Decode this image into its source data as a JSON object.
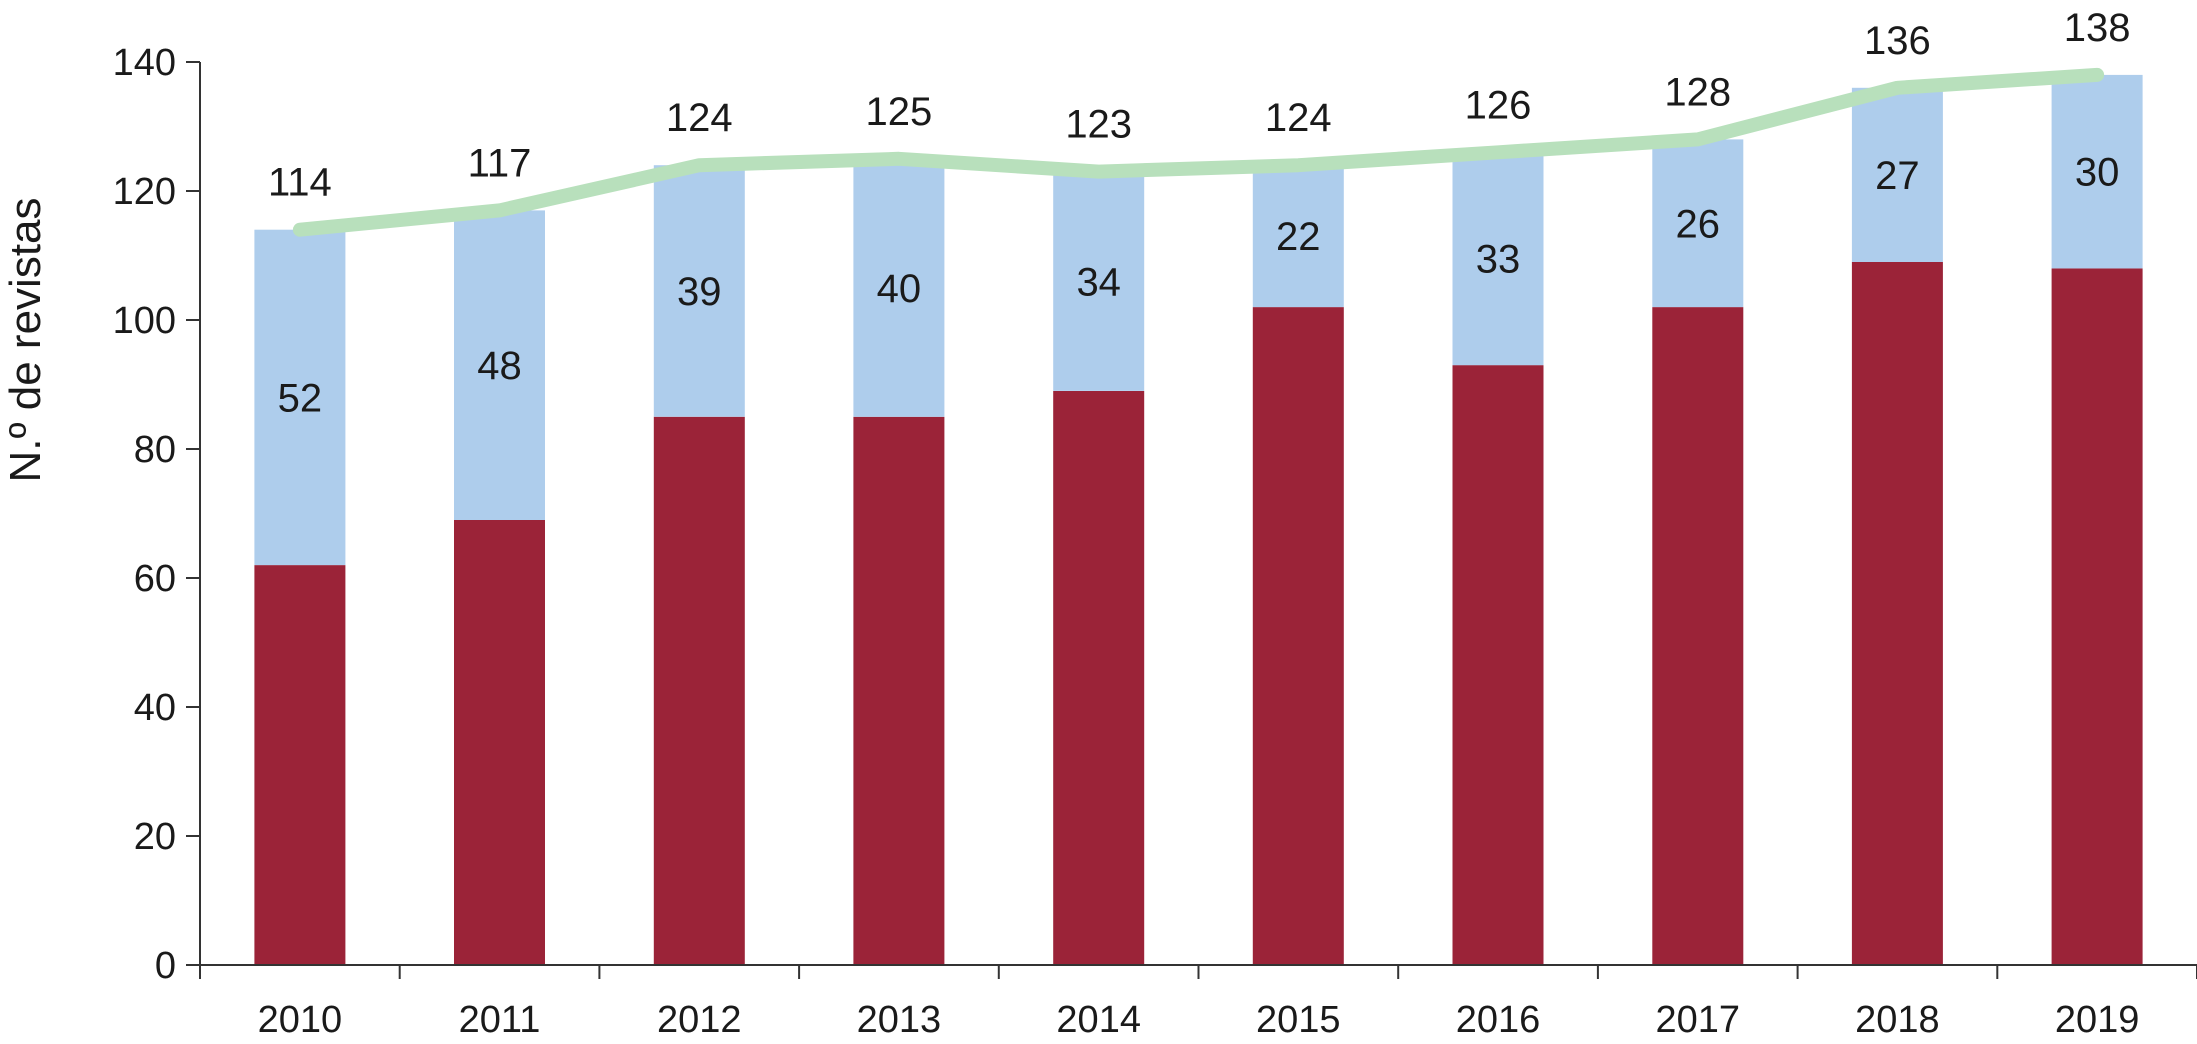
{
  "chart_data": {
    "type": "bar",
    "stacked": true,
    "title": "",
    "xlabel": "",
    "ylabel": "N.º de revistas",
    "ylim": [
      0,
      140
    ],
    "yticks": [
      0,
      20,
      40,
      60,
      80,
      100,
      120,
      140
    ],
    "grid": false,
    "categories": [
      "2010",
      "2011",
      "2012",
      "2013",
      "2014",
      "2015",
      "2016",
      "2017",
      "2018",
      "2019"
    ],
    "series": [
      {
        "kind": "bar",
        "color": "#9b2338",
        "values": [
          62,
          69,
          85,
          85,
          89,
          102,
          93,
          102,
          109,
          108
        ]
      },
      {
        "kind": "bar",
        "color": "#aecdec",
        "values": [
          52,
          48,
          39,
          40,
          34,
          22,
          33,
          26,
          27,
          30
        ],
        "data_labels": [
          "52",
          "48",
          "39",
          "40",
          "34",
          "22",
          "33",
          "26",
          "27",
          "30"
        ]
      },
      {
        "kind": "line",
        "color": "#b8e0bc",
        "values": [
          114,
          117,
          124,
          125,
          123,
          124,
          126,
          128,
          136,
          138
        ],
        "data_labels": [
          "114",
          "117",
          "124",
          "125",
          "123",
          "124",
          "126",
          "128",
          "136",
          "138"
        ]
      }
    ]
  }
}
